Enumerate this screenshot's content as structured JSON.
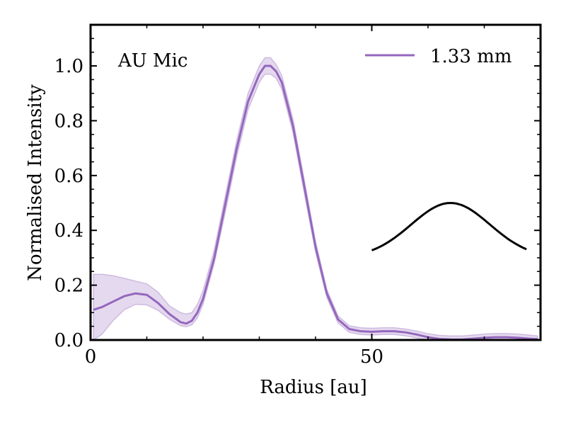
{
  "chart_data": {
    "type": "line",
    "title": "",
    "xlabel": "Radius [au]",
    "ylabel": "Normalised Intensity",
    "xlim": [
      0,
      80
    ],
    "ylim": [
      0,
      1.15
    ],
    "x_ticks": [
      0,
      50
    ],
    "x_tick_labels": [
      "0",
      "50"
    ],
    "y_ticks": [
      0,
      0.2,
      0.4,
      0.6,
      0.8,
      1.0
    ],
    "y_tick_labels": [
      "0.0",
      "0.2",
      "0.4",
      "0.6",
      "0.8",
      "1.0"
    ],
    "grid": false,
    "legend_position": "top-right",
    "annotation": "AU Mic",
    "series": [
      {
        "name": "1.33 mm",
        "color": "#9467bd",
        "band_color": "#9467bd",
        "x": [
          0.5,
          2,
          4,
          6,
          8,
          10,
          12,
          14,
          16,
          17,
          18,
          19,
          20,
          22,
          24,
          26,
          28,
          30,
          31,
          32,
          33,
          34,
          36,
          38,
          40,
          42,
          44,
          46,
          48,
          50,
          52,
          54,
          56,
          58,
          60,
          62,
          64,
          66,
          68,
          70,
          72,
          74,
          76,
          78,
          79.5
        ],
        "y": [
          0.11,
          0.12,
          0.14,
          0.16,
          0.17,
          0.165,
          0.135,
          0.095,
          0.065,
          0.06,
          0.07,
          0.1,
          0.15,
          0.3,
          0.5,
          0.7,
          0.87,
          0.97,
          1.0,
          1.0,
          0.98,
          0.94,
          0.78,
          0.56,
          0.34,
          0.17,
          0.075,
          0.04,
          0.032,
          0.03,
          0.032,
          0.032,
          0.028,
          0.02,
          0.01,
          0.004,
          0.002,
          0.002,
          0.005,
          0.008,
          0.01,
          0.01,
          0.008,
          0.005,
          0.003
        ],
        "lower": [
          0.0,
          0.02,
          0.07,
          0.11,
          0.13,
          0.128,
          0.108,
          0.076,
          0.052,
          0.048,
          0.055,
          0.08,
          0.13,
          0.28,
          0.47,
          0.67,
          0.84,
          0.94,
          0.97,
          0.97,
          0.955,
          0.915,
          0.755,
          0.535,
          0.32,
          0.155,
          0.062,
          0.028,
          0.02,
          0.018,
          0.02,
          0.02,
          0.015,
          0.007,
          0.0,
          0.0,
          0.0,
          0.0,
          0.0,
          0.0,
          0.0,
          0.0,
          0.0,
          0.0,
          0.0
        ],
        "upper": [
          0.24,
          0.24,
          0.235,
          0.225,
          0.215,
          0.205,
          0.175,
          0.125,
          0.1,
          0.095,
          0.1,
          0.13,
          0.18,
          0.33,
          0.53,
          0.73,
          0.9,
          1.0,
          1.03,
          1.03,
          1.005,
          0.965,
          0.805,
          0.585,
          0.36,
          0.185,
          0.088,
          0.052,
          0.045,
          0.043,
          0.045,
          0.045,
          0.04,
          0.033,
          0.023,
          0.017,
          0.015,
          0.015,
          0.018,
          0.022,
          0.024,
          0.024,
          0.022,
          0.018,
          0.015
        ]
      }
    ],
    "beam": {
      "name": "beam",
      "color": "#000000",
      "center": 64,
      "sigma": 7,
      "baseline": 0.3,
      "peak": 0.5,
      "x_start": 50,
      "x_end": 77.5
    }
  }
}
